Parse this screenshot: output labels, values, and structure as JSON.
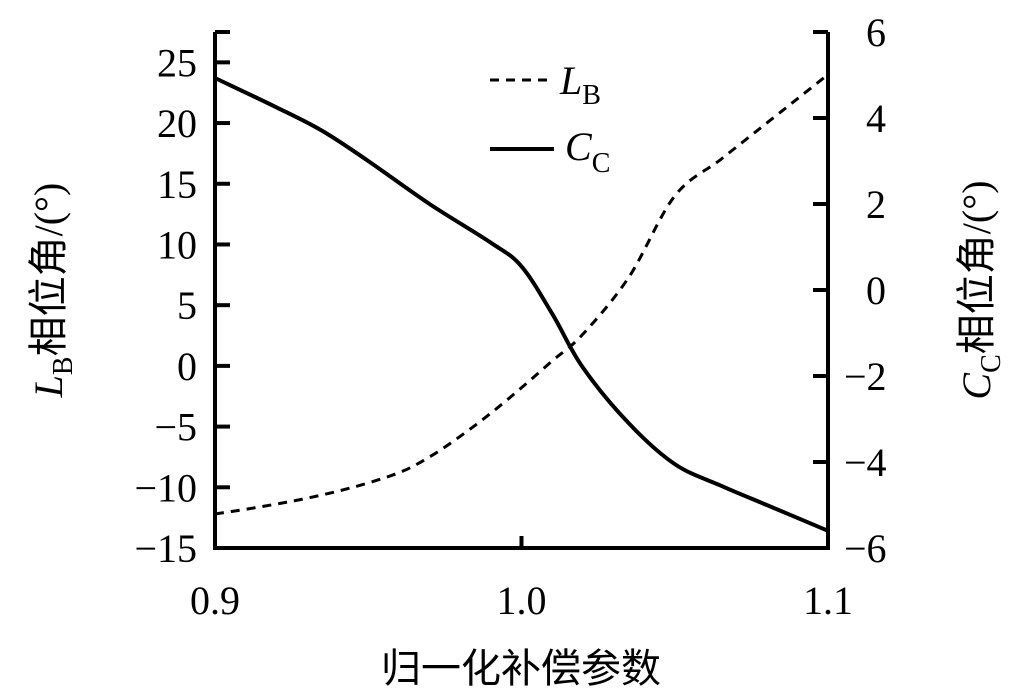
{
  "chart_data": {
    "type": "line",
    "title": "",
    "xlabel": "归一化补偿参数",
    "ylabel_left": {
      "main": "L",
      "sub": "B",
      "rest": "相位角/(°)"
    },
    "ylabel_right": {
      "main": "C",
      "sub": "C",
      "rest": "相位角/(°)"
    },
    "xlim": [
      0.9,
      1.1
    ],
    "ylim_left": [
      -15,
      27.5
    ],
    "ylim_right": [
      -6,
      6
    ],
    "x_ticks": [
      "0.9",
      "1.0",
      "1.1"
    ],
    "x_tick_values": [
      0.9,
      1.0,
      1.1
    ],
    "y_left_ticks": [
      "25",
      "20",
      "15",
      "10",
      "5",
      "0",
      "−5",
      "−10",
      "−15"
    ],
    "y_left_tick_values": [
      25,
      20,
      15,
      10,
      5,
      0,
      -5,
      -10,
      -15
    ],
    "y_right_ticks": [
      "6",
      "4",
      "2",
      "0",
      "−2",
      "−4",
      "−6"
    ],
    "y_right_tick_values": [
      6,
      4,
      2,
      0,
      -2,
      -4,
      -6
    ],
    "grid": false,
    "legend_position": "upper-center",
    "legend": [
      {
        "main": "L",
        "sub": "B",
        "style": "dashed"
      },
      {
        "main": "C",
        "sub": "C",
        "style": "solid"
      }
    ],
    "series": [
      {
        "name": "L_B",
        "axis": "left",
        "style": "dashed",
        "x": [
          0.9,
          0.915,
          0.93,
          0.945,
          0.96,
          0.97,
          0.98,
          0.99,
          1.0,
          1.01,
          1.02,
          1.035,
          1.05,
          1.065,
          1.08,
          1.09,
          1.1
        ],
        "values": [
          -12.2,
          -11.6,
          -10.9,
          -10.0,
          -8.8,
          -7.5,
          -5.8,
          -3.9,
          -1.8,
          0.4,
          2.6,
          7.3,
          14.0,
          17.0,
          20.0,
          22.0,
          24.0
        ]
      },
      {
        "name": "C_C",
        "axis": "right",
        "style": "solid",
        "x": [
          0.9,
          0.92,
          0.935,
          0.95,
          0.97,
          0.99,
          1.0,
          1.01,
          1.02,
          1.035,
          1.05,
          1.065,
          1.08,
          1.1
        ],
        "values": [
          4.93,
          4.25,
          3.7,
          3.0,
          2.0,
          1.1,
          0.55,
          -0.55,
          -1.8,
          -3.1,
          -4.05,
          -4.55,
          -5.0,
          -5.6
        ]
      }
    ]
  }
}
